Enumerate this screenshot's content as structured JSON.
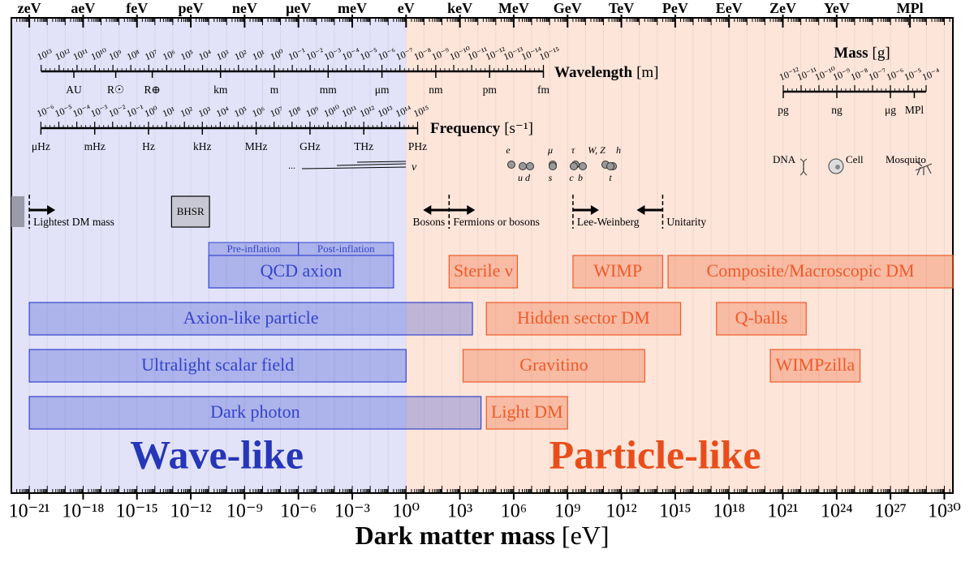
{
  "chart_data": {
    "type": "range",
    "xlabel": "Dark matter mass",
    "xunit": "[eV]",
    "xscale": "log",
    "xlim": [
      1e-22,
      3e+30
    ],
    "xticks": [
      {
        "value": 1e-21,
        "label": "10⁻²¹"
      },
      {
        "value": 1e-18,
        "label": "10⁻¹⁸"
      },
      {
        "value": 1e-15,
        "label": "10⁻¹⁵"
      },
      {
        "value": 1e-12,
        "label": "10⁻¹²"
      },
      {
        "value": 1e-09,
        "label": "10⁻⁹"
      },
      {
        "value": 1e-06,
        "label": "10⁻⁶"
      },
      {
        "value": 0.001,
        "label": "10⁻³"
      },
      {
        "value": 1,
        "label": "10⁰"
      },
      {
        "value": 1000.0,
        "label": "10³"
      },
      {
        "value": 1000000.0,
        "label": "10⁶"
      },
      {
        "value": 1000000000.0,
        "label": "10⁹"
      },
      {
        "value": 1000000000000.0,
        "label": "10¹²"
      },
      {
        "value": 1000000000000000.0,
        "label": "10¹⁵"
      },
      {
        "value": 1e+18,
        "label": "10¹⁸"
      },
      {
        "value": 1e+21,
        "label": "10²¹"
      },
      {
        "value": 1e+24,
        "label": "10²⁴"
      },
      {
        "value": 1e+27,
        "label": "10²⁷"
      },
      {
        "value": 1e+30,
        "label": "10³⁰"
      }
    ],
    "top_ticks": [
      {
        "value": 1e-21,
        "label": "zeV"
      },
      {
        "value": 1e-18,
        "label": "aeV"
      },
      {
        "value": 1e-15,
        "label": "feV"
      },
      {
        "value": 1e-12,
        "label": "peV"
      },
      {
        "value": 1e-09,
        "label": "neV"
      },
      {
        "value": 1e-06,
        "label": "μeV"
      },
      {
        "value": 0.001,
        "label": "meV"
      },
      {
        "value": 1,
        "label": "eV"
      },
      {
        "value": 1000.0,
        "label": "keV"
      },
      {
        "value": 1000000.0,
        "label": "MeV"
      },
      {
        "value": 1000000000.0,
        "label": "GeV"
      },
      {
        "value": 1000000000000.0,
        "label": "TeV"
      },
      {
        "value": 1000000000000000.0,
        "label": "PeV"
      },
      {
        "value": 1e+18,
        "label": "EeV"
      },
      {
        "value": 1e+21,
        "label": "ZeV"
      },
      {
        "value": 1e+24,
        "label": "YeV"
      },
      {
        "value": 1.22e+28,
        "label": "MPl"
      }
    ],
    "regions": [
      {
        "name": "Wave-like",
        "range": [
          1e-22,
          1
        ],
        "fill": "#e2e3f8",
        "color": "#2536b8"
      },
      {
        "name": "Particle-like",
        "range": [
          1,
          3e+30
        ],
        "fill": "#fde5da",
        "color": "#e84e1b"
      }
    ],
    "rows": [
      [
        {
          "name": "QCD axion",
          "range": [
            1e-11,
            0.2
          ],
          "color": "#3344cc",
          "subranges": [
            {
              "name": "Pre-inflation",
              "range": [
                1e-11,
                1e-06
              ]
            },
            {
              "name": "Post-inflation",
              "range": [
                1e-06,
                0.2
              ]
            }
          ]
        },
        {
          "name": "Sterile ν",
          "range": [
            250,
            1600000.0
          ],
          "color": "#f05a28"
        },
        {
          "name": "WIMP",
          "range": [
            2000000000.0,
            200000000000000.0
          ],
          "color": "#f05a28"
        },
        {
          "name": "Composite/Macroscopic DM",
          "range": [
            400000000000000.0,
            3e+30
          ],
          "color": "#f05a28"
        }
      ],
      [
        {
          "name": "Axion-like particle",
          "range": [
            1e-21,
            5000.0
          ],
          "color": "#3344cc"
        },
        {
          "name": "Hidden sector DM",
          "range": [
            30000.0,
            2000000000000000.0
          ],
          "color": "#f05a28"
        },
        {
          "name": "Q-balls",
          "range": [
            2e+17,
            2e+22
          ],
          "color": "#f05a28"
        }
      ],
      [
        {
          "name": "Ultralight scalar field",
          "range": [
            1e-21,
            1
          ],
          "color": "#3344cc"
        },
        {
          "name": "Gravitino",
          "range": [
            1500.0,
            20000000000000.0
          ],
          "color": "#f05a28"
        },
        {
          "name": "WIMPzilla",
          "range": [
            2e+20,
            2e+25
          ],
          "color": "#f05a28"
        }
      ],
      [
        {
          "name": "Dark photon",
          "range": [
            1e-21,
            15000.0
          ],
          "color": "#3344cc"
        },
        {
          "name": "Light DM",
          "range": [
            30000.0,
            1000000000.0
          ],
          "color": "#f05a28"
        }
      ]
    ],
    "bhsr": {
      "name": "BHSR",
      "range": [
        8.5e-14,
        1.1e-11
      ]
    },
    "limits": [
      {
        "label": "Lightest DM mass",
        "value": 1e-21,
        "arrow": "right",
        "label_side": "right"
      },
      {
        "label": "Bosons",
        "value": 250,
        "arrow": "left",
        "label_side": "left"
      },
      {
        "label": "Fermions or bosons",
        "value": 250,
        "arrow": "right",
        "label_side": "right"
      },
      {
        "label": "Lee-Weinberg",
        "value": 2000000000.0,
        "arrow": "right",
        "label_side": "right"
      },
      {
        "label": "Unitarity",
        "value": 200000000000000.0,
        "arrow": "left",
        "label_side": "right"
      }
    ],
    "wavelength": {
      "label": "Wavelength",
      "unit": "[m]",
      "ticks": [
        {
          "value": 10000000000000.0,
          "label": "10¹³"
        },
        {
          "value": 1000000000000.0,
          "label": "10¹²"
        },
        {
          "value": 100000000000.0,
          "label": "10¹¹"
        },
        {
          "value": 10000000000.0,
          "label": "10¹⁰"
        },
        {
          "value": 1000000000.0,
          "label": "10⁹"
        },
        {
          "value": 100000000.0,
          "label": "10⁸"
        },
        {
          "value": 10000000.0,
          "label": "10⁷"
        },
        {
          "value": 1000000.0,
          "label": "10⁶"
        },
        {
          "value": 100000.0,
          "label": "10⁵"
        },
        {
          "value": 10000.0,
          "label": "10⁴"
        },
        {
          "value": 1000.0,
          "label": "10³"
        },
        {
          "value": 100,
          "label": "10²"
        },
        {
          "value": 10,
          "label": "10¹"
        },
        {
          "value": 1,
          "label": "10⁰"
        },
        {
          "value": 0.1,
          "label": "10⁻¹"
        },
        {
          "value": 0.01,
          "label": "10⁻²"
        },
        {
          "value": 0.001,
          "label": "10⁻³"
        },
        {
          "value": 0.0001,
          "label": "10⁻⁴"
        },
        {
          "value": 1e-05,
          "label": "10⁻⁵"
        },
        {
          "value": 1e-06,
          "label": "10⁻⁶"
        },
        {
          "value": 1e-07,
          "label": "10⁻⁷"
        },
        {
          "value": 1e-08,
          "label": "10⁻⁸"
        },
        {
          "value": 1e-09,
          "label": "10⁻⁹"
        },
        {
          "value": 1e-10,
          "label": "10⁻¹⁰"
        },
        {
          "value": 1e-11,
          "label": "10⁻¹¹"
        },
        {
          "value": 1e-12,
          "label": "10⁻¹²"
        },
        {
          "value": 1e-13,
          "label": "10⁻¹³"
        },
        {
          "value": 1e-14,
          "label": "10⁻¹⁴"
        },
        {
          "value": 1e-15,
          "label": "10⁻¹⁵"
        }
      ],
      "named": [
        {
          "value": 149600000000.0,
          "label": "AU"
        },
        {
          "value": 696000000.0,
          "label": "R☉"
        },
        {
          "value": 6371000.0,
          "label": "R⊕"
        },
        {
          "value": 1000.0,
          "label": "km"
        },
        {
          "value": 1,
          "label": "m"
        },
        {
          "value": 0.001,
          "label": "mm"
        },
        {
          "value": 1e-06,
          "label": "μm"
        },
        {
          "value": 1e-09,
          "label": "nm"
        },
        {
          "value": 1e-12,
          "label": "pm"
        },
        {
          "value": 1e-15,
          "label": "fm"
        }
      ]
    },
    "frequency": {
      "label": "Frequency",
      "unit": "[s⁻¹]",
      "ticks": [
        {
          "value": 1e-06,
          "label": "10⁻⁶"
        },
        {
          "value": 1e-05,
          "label": "10⁻⁵"
        },
        {
          "value": 0.0001,
          "label": "10⁻⁴"
        },
        {
          "value": 0.001,
          "label": "10⁻³"
        },
        {
          "value": 0.01,
          "label": "10⁻²"
        },
        {
          "value": 0.1,
          "label": "10⁻¹"
        },
        {
          "value": 1,
          "label": "10⁰"
        },
        {
          "value": 10,
          "label": "10¹"
        },
        {
          "value": 100,
          "label": "10²"
        },
        {
          "value": 1000.0,
          "label": "10³"
        },
        {
          "value": 10000.0,
          "label": "10⁴"
        },
        {
          "value": 100000.0,
          "label": "10⁵"
        },
        {
          "value": 1000000.0,
          "label": "10⁶"
        },
        {
          "value": 10000000.0,
          "label": "10⁷"
        },
        {
          "value": 100000000.0,
          "label": "10⁸"
        },
        {
          "value": 1000000000.0,
          "label": "10⁹"
        },
        {
          "value": 10000000000.0,
          "label": "10¹⁰"
        },
        {
          "value": 100000000000.0,
          "label": "10¹¹"
        },
        {
          "value": 1000000000000.0,
          "label": "10¹²"
        },
        {
          "value": 10000000000000.0,
          "label": "10¹³"
        },
        {
          "value": 100000000000000.0,
          "label": "10¹⁴"
        },
        {
          "value": 1000000000000000.0,
          "label": "10¹⁵"
        }
      ],
      "named": [
        {
          "value": 1e-06,
          "label": "μHz"
        },
        {
          "value": 0.001,
          "label": "mHz"
        },
        {
          "value": 1,
          "label": "Hz"
        },
        {
          "value": 1000.0,
          "label": "kHz"
        },
        {
          "value": 1000000.0,
          "label": "MHz"
        },
        {
          "value": 1000000000.0,
          "label": "GHz"
        },
        {
          "value": 1000000000000.0,
          "label": "THz"
        },
        {
          "value": 1000000000000000.0,
          "label": "PHz"
        }
      ]
    },
    "mass": {
      "label": "Mass",
      "unit": "[g]",
      "ticks": [
        {
          "value": 1e-12,
          "label": "10⁻¹²"
        },
        {
          "value": 1e-11,
          "label": "10⁻¹¹"
        },
        {
          "value": 1e-10,
          "label": "10⁻¹⁰"
        },
        {
          "value": 1e-09,
          "label": "10⁻⁹"
        },
        {
          "value": 1e-08,
          "label": "10⁻⁸"
        },
        {
          "value": 1e-07,
          "label": "10⁻⁷"
        },
        {
          "value": 1e-06,
          "label": "10⁻⁶"
        },
        {
          "value": 1e-05,
          "label": "10⁻⁵"
        },
        {
          "value": 0.0001,
          "label": "10⁻⁴"
        }
      ],
      "named": [
        {
          "value": 1e-12,
          "label": "pg"
        },
        {
          "value": 1e-09,
          "label": "ng"
        },
        {
          "value": 1e-06,
          "label": "μg"
        },
        {
          "value": 2.18e-05,
          "label": "MPl"
        }
      ]
    },
    "particles": [
      "e",
      "u",
      "d",
      "μ",
      "s",
      "τ",
      "c",
      "b",
      "W, Z",
      "h",
      "t"
    ],
    "neutrino": {
      "prefix": "...",
      "label": "ν"
    },
    "objects": [
      "DNA",
      "Cell",
      "Mosquito"
    ]
  }
}
